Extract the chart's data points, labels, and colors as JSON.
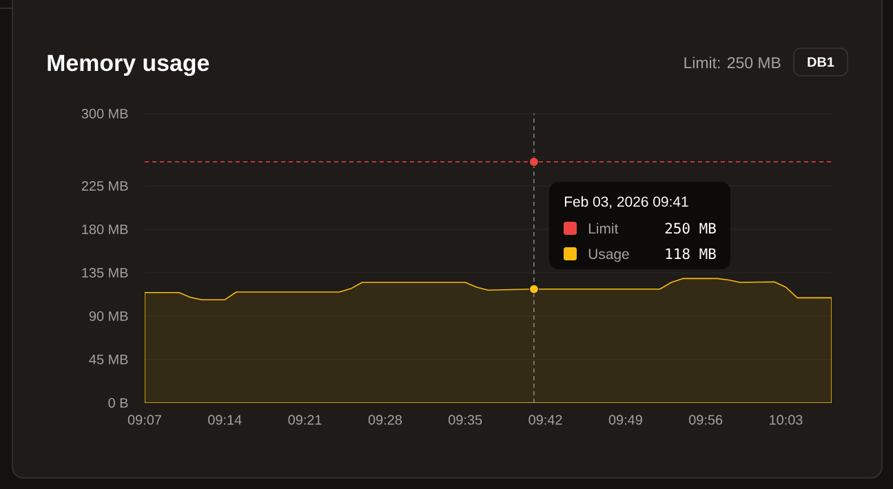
{
  "chart_data": {
    "type": "area",
    "title": "Memory usage",
    "series": [
      {
        "name": "Limit",
        "type": "line",
        "line_style": "dashed",
        "color": "#ef4444",
        "x": [
          9.1167,
          10.1167
        ],
        "values": [
          250,
          250
        ]
      },
      {
        "name": "Usage",
        "color": "#fbbb0d",
        "x": [
          9.1167,
          9.1667,
          9.1833,
          9.2,
          9.2333,
          9.25,
          9.4,
          9.4167,
          9.4333,
          9.5833,
          9.6,
          9.6167,
          9.6833,
          9.8667,
          9.8833,
          9.9,
          9.95,
          9.9667,
          9.9833,
          10.0333,
          10.05,
          10.0667,
          10.1167
        ],
        "values": [
          114.5,
          114.5,
          109.5,
          107,
          107,
          115,
          115,
          118.5,
          125,
          125,
          120,
          117,
          118,
          118,
          125,
          129,
          129,
          127.5,
          125,
          125.5,
          120,
          109,
          109
        ]
      },
      {
        "type": "scatter",
        "marker": "circle",
        "color": "#ef4444",
        "x": [
          9.6833
        ],
        "values": [
          250
        ]
      },
      {
        "type": "scatter",
        "marker": "circle",
        "color": "#fcc21b",
        "x": [
          9.6833
        ],
        "values": [
          118
        ]
      }
    ],
    "xlim": [
      9.1167,
      10.1167
    ],
    "xticks": [
      {
        "value": 9.1167,
        "label": "09:07"
      },
      {
        "value": 9.2333,
        "label": "09:14"
      },
      {
        "value": 9.35,
        "label": "09:21"
      },
      {
        "value": 9.4667,
        "label": "09:28"
      },
      {
        "value": 9.5833,
        "label": "09:35"
      },
      {
        "value": 9.7,
        "label": "09:42"
      },
      {
        "value": 9.8167,
        "label": "09:49"
      },
      {
        "value": 9.9333,
        "label": "09:56"
      },
      {
        "value": 10.05,
        "label": "10:03"
      }
    ],
    "ylim": [
      0,
      300
    ],
    "yticks": [
      {
        "value": 0,
        "label": "0 B"
      },
      {
        "value": 45,
        "label": "45 MB"
      },
      {
        "value": 90,
        "label": "90 MB"
      },
      {
        "value": 135,
        "label": "135 MB"
      },
      {
        "value": 180,
        "label": "180 MB"
      },
      {
        "value": 225,
        "label": "225 MB"
      },
      {
        "value": 300,
        "label": "300 MB"
      }
    ],
    "grid": "y",
    "legend": "top right",
    "ref_lines": [
      {
        "axis": "x",
        "value": 9.6833,
        "color": "#a8a29e",
        "line_style": "dashed"
      }
    ],
    "annotations": [
      "Feb 03, 2026 09:41",
      "250 MB",
      "118 MB",
      "Limit: 250 MB",
      "DB1"
    ]
  }
}
